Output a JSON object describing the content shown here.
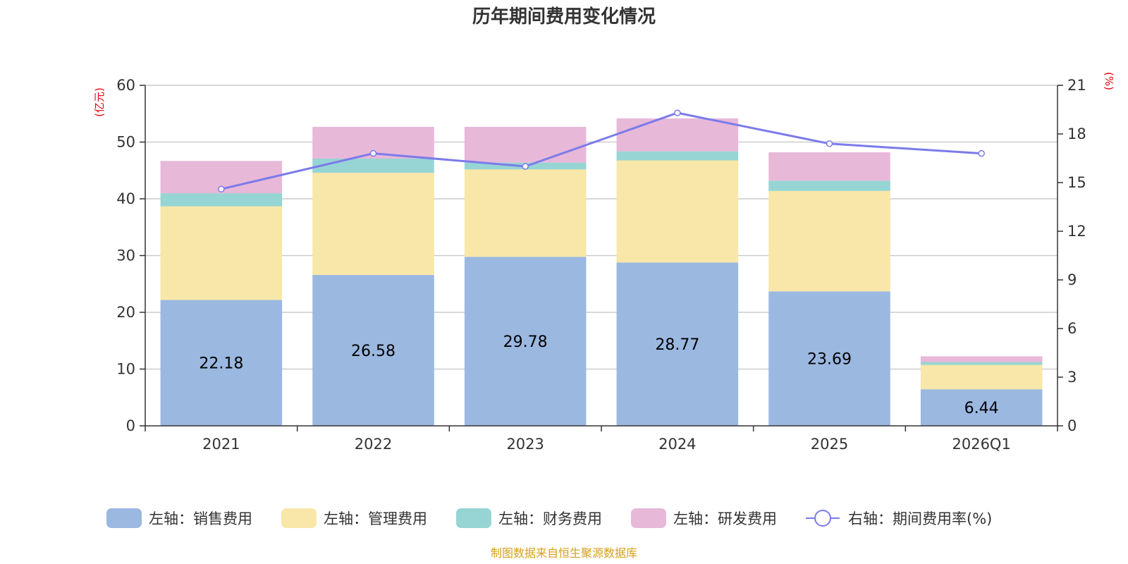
{
  "chart_data": {
    "type": "bar",
    "stacked": true,
    "title": "历年期间费用变化情况",
    "categories": [
      "2021",
      "2022",
      "2023",
      "2024",
      "2025",
      "2026Q1"
    ],
    "left_axis": {
      "unit": "(亿元)",
      "ylim": [
        0,
        60
      ],
      "ticks": [
        "0",
        "10",
        "20",
        "30",
        "40",
        "50",
        "60"
      ]
    },
    "right_axis": {
      "unit": "(%)",
      "ylim": [
        0,
        21
      ],
      "ticks": [
        "0",
        "3",
        "6",
        "9",
        "12",
        "15",
        "18",
        "21"
      ]
    },
    "series": [
      {
        "name": "左轴：销售费用",
        "axis": "left",
        "color": "#9bb8e1",
        "values": [
          22.18,
          26.58,
          29.78,
          28.77,
          23.69,
          6.44
        ],
        "labels": [
          "22.18",
          "26.58",
          "29.78",
          "28.77",
          "23.69",
          "6.44"
        ]
      },
      {
        "name": "左轴：管理费用",
        "axis": "left",
        "color": "#f8e7a8",
        "values": [
          16.5,
          18.0,
          15.4,
          18.0,
          17.7,
          4.3
        ]
      },
      {
        "name": "左轴：财务费用",
        "axis": "left",
        "color": "#96d5d4",
        "values": [
          2.3,
          2.5,
          1.2,
          1.6,
          1.8,
          0.5
        ]
      },
      {
        "name": "左轴：研发费用",
        "axis": "left",
        "color": "#e8b8d9",
        "values": [
          5.7,
          5.6,
          6.3,
          5.8,
          5.0,
          1.0
        ]
      },
      {
        "name": "右轴：期间费用率(%)",
        "axis": "right",
        "type": "line",
        "color": "#7b7bea",
        "values": [
          14.6,
          16.8,
          16.0,
          19.3,
          17.4,
          16.8
        ]
      }
    ]
  },
  "source": "制图数据来自恒生聚源数据库"
}
